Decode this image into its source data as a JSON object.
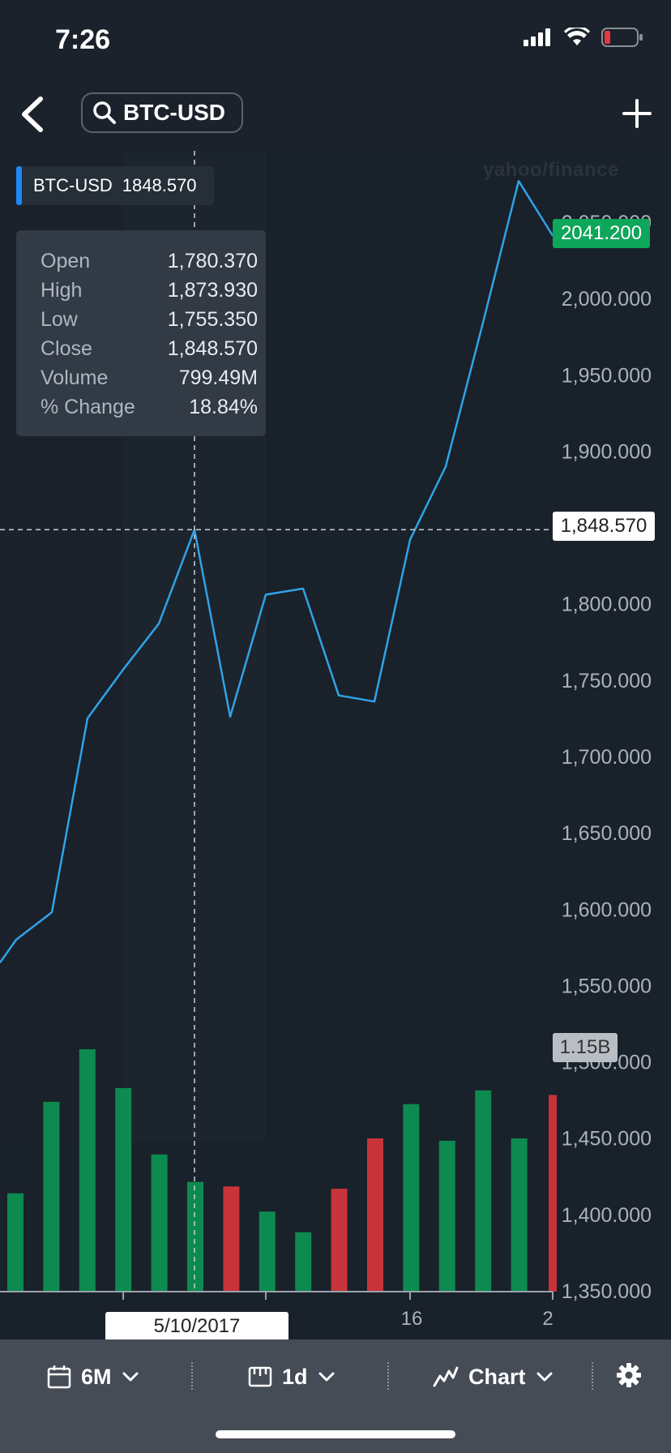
{
  "status_bar": {
    "time": "7:26"
  },
  "nav": {
    "search_value": "BTC-USD"
  },
  "watermark": "yahoo/finance",
  "symbol_tag": {
    "symbol": "BTC-USD",
    "price": "1848.570"
  },
  "ohlc": [
    {
      "label": "Open",
      "value": "1,780.370"
    },
    {
      "label": "High",
      "value": "1,873.930"
    },
    {
      "label": "Low",
      "value": "1,755.350"
    },
    {
      "label": "Close",
      "value": "1,848.570"
    },
    {
      "label": "Volume",
      "value": "799.49M"
    },
    {
      "label": "% Change",
      "value": "18.84%"
    }
  ],
  "badges": {
    "last_price": "2041.200",
    "crosshair_price": "1,848.570",
    "volume_label": "1.15B",
    "crosshair_date": "5/10/2017"
  },
  "toolbar": {
    "range_label": "6M",
    "interval_label": "1d",
    "chart_type_label": "Chart",
    "icons": [
      "calendar-icon",
      "ruler-icon",
      "line-chart-icon",
      "gear-icon"
    ]
  },
  "colors": {
    "line": "#2fa3e8",
    "up": "#0d8a4f",
    "down": "#c8333a",
    "last_badge": "#0ea65a",
    "tag_accent": "#1e88f5"
  },
  "chart_data": {
    "type": "line",
    "title": "",
    "series": [
      {
        "values": [
          1565,
          1580,
          1598,
          1725,
          1757,
          1787,
          1848.57,
          1726,
          1806,
          1810,
          1740,
          1736,
          1842,
          1890,
          1980,
          2077,
          2041.2
        ]
      }
    ],
    "volume": [
      {
        "value": 0.43,
        "direction": "up"
      },
      {
        "value": 0.83,
        "direction": "up"
      },
      {
        "value": 1.06,
        "direction": "up"
      },
      {
        "value": 0.89,
        "direction": "up"
      },
      {
        "value": 0.6,
        "direction": "up"
      },
      {
        "value": 0.48,
        "direction": "up"
      },
      {
        "value": 0.46,
        "direction": "down"
      },
      {
        "value": 0.35,
        "direction": "up"
      },
      {
        "value": 0.26,
        "direction": "up"
      },
      {
        "value": 0.45,
        "direction": "down"
      },
      {
        "value": 0.67,
        "direction": "down"
      },
      {
        "value": 0.82,
        "direction": "up"
      },
      {
        "value": 0.66,
        "direction": "up"
      },
      {
        "value": 0.88,
        "direction": "up"
      },
      {
        "value": 0.67,
        "direction": "up"
      },
      {
        "value": 0.86,
        "direction": "down"
      }
    ],
    "y_ticks": [
      "2,050.000",
      "2,000.000",
      "1,950.000",
      "1,900.000",
      "1,850.000",
      "1,800.000",
      "1,750.000",
      "1,700.000",
      "1,650.000",
      "1,600.000",
      "1,550.000",
      "1,500.000",
      "1,450.000",
      "1,400.000",
      "1,350.000"
    ],
    "x_ticks": [
      "16",
      "2"
    ],
    "ylim": [
      1350,
      2100
    ],
    "grid": false
  }
}
